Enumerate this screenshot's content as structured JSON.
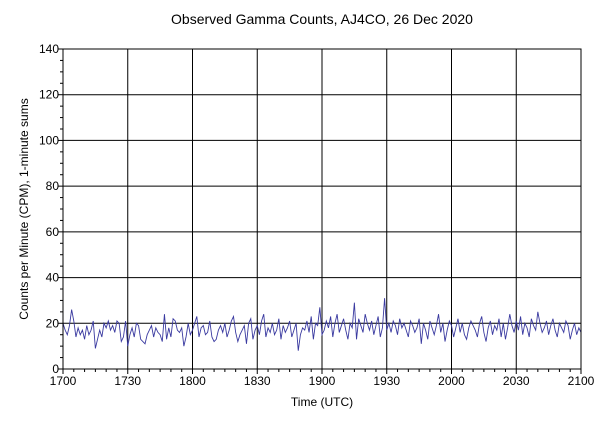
{
  "chart_data": {
    "type": "line",
    "title": "Observed Gamma Counts, AJ4CO, 26 Dec 2020",
    "xlabel": "Time (UTC)",
    "ylabel": "Counts per Minute (CPM), 1-minute sums",
    "x_ticks": [
      "1700",
      "1730",
      "1800",
      "1830",
      "1900",
      "1930",
      "2000",
      "2030",
      "2100"
    ],
    "y_ticks": [
      0,
      20,
      40,
      60,
      80,
      100,
      120,
      140
    ],
    "ylim": [
      0,
      140
    ],
    "xlim_minutes_after_1700": [
      0,
      240
    ],
    "grid": true,
    "series": [
      {
        "color": "#3a3aa0",
        "x_start": "1700",
        "x_step_minutes": 1,
        "values": [
          20,
          17,
          15,
          19,
          26,
          21,
          14,
          18,
          15,
          17,
          13,
          19,
          15,
          17,
          21,
          9,
          13,
          17,
          14,
          20,
          18,
          21,
          17,
          19,
          16,
          21,
          20,
          12,
          14,
          21,
          10,
          15,
          18,
          14,
          20,
          19,
          13,
          12,
          11,
          15,
          17,
          19,
          14,
          18,
          16,
          15,
          12,
          24,
          13,
          18,
          14,
          22,
          21,
          17,
          16,
          18,
          10,
          14,
          20,
          15,
          17,
          20,
          23,
          14,
          18,
          19,
          15,
          16,
          21,
          14,
          12,
          13,
          17,
          19,
          16,
          20,
          14,
          17,
          21,
          23,
          16,
          12,
          15,
          17,
          19,
          11,
          20,
          22,
          13,
          17,
          19,
          15,
          21,
          24,
          14,
          18,
          16,
          20,
          15,
          17,
          22,
          13,
          19,
          16,
          18,
          21,
          14,
          17,
          20,
          8,
          15,
          18,
          17,
          21,
          16,
          23,
          13,
          20,
          19,
          27,
          15,
          17,
          21,
          18,
          23,
          14,
          20,
          24,
          16,
          19,
          22,
          17,
          13,
          20,
          18,
          29,
          13,
          22,
          19,
          16,
          24,
          20,
          17,
          21,
          15,
          19,
          23,
          14,
          18,
          31,
          17,
          20,
          16,
          21,
          19,
          15,
          22,
          18,
          20,
          17,
          14,
          21,
          19,
          16,
          18,
          22,
          11,
          20,
          17,
          13,
          21,
          18,
          15,
          19,
          24,
          16,
          20,
          12,
          17,
          21,
          19,
          14,
          18,
          22,
          16,
          20,
          15,
          13,
          18,
          21,
          19,
          17,
          14,
          20,
          23,
          16,
          12,
          18,
          21,
          15,
          19,
          17,
          22,
          14,
          20,
          13,
          18,
          24,
          19,
          16,
          21,
          17,
          23,
          15,
          20,
          18,
          14,
          22,
          19,
          17,
          25,
          20,
          16,
          18,
          21,
          15,
          19,
          22,
          17,
          14,
          20,
          18,
          16,
          21,
          19,
          13,
          17,
          20,
          15,
          18,
          16
        ]
      }
    ]
  }
}
